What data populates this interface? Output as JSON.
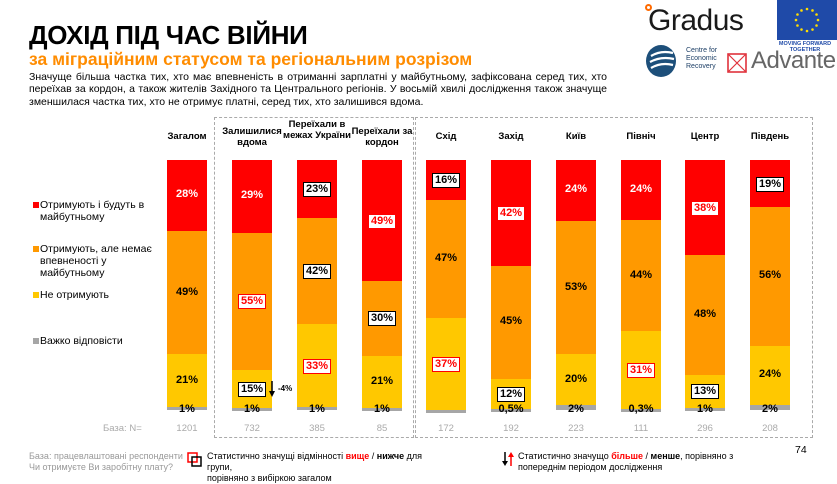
{
  "header": {
    "title": "ДОХІД ПІД ЧАС ВІЙНИ",
    "subtitle": "за міграційним статусом та регіональним розрізом",
    "description": "Значуще більша частка тих, хто має впевненість в отриманні зарплатні у майбутньому, зафіксована серед тих, хто переїхав за кордон, а також жителів Західного та Центрального регіонів. У восьмій хвилі дослідження також значуще зменшилася частка тих, хто не отримує платні, серед тих, хто залишився вдома."
  },
  "logos": {
    "gradus": "Gradus",
    "eu_caption": "MOVING FORWARD TOGETHER",
    "cer": "Centre for Economic Recovery",
    "advanter": "Advanter"
  },
  "colors": {
    "receive_future": "#ff0000",
    "receive_uncertain": "#ff9900",
    "not_receive": "#ffc800",
    "hard_to_say": "#a6a6a6",
    "subtitle": "#ff8c00",
    "highlight": "#ff0000"
  },
  "chart_data": {
    "type": "bar",
    "stacked": true,
    "orientation": "vertical",
    "title": "ДОХІД ПІД ЧАС ВІЙНИ",
    "ylim": [
      0,
      100
    ],
    "categories": [
      "Загалом",
      "Залишилися вдома",
      "Переїхали в межах України",
      "Переїхали за кордон",
      "Схід",
      "Захід",
      "Київ",
      "Північ",
      "Центр",
      "Південь"
    ],
    "series": [
      {
        "name": "Отримують і будуть в майбутньому",
        "values": [
          28,
          29,
          23,
          49,
          16,
          42,
          24,
          24,
          38,
          19
        ]
      },
      {
        "name": "Отримують, але немає впевненості у майбутньому",
        "values": [
          49,
          55,
          42,
          30,
          47,
          45,
          53,
          44,
          48,
          56
        ]
      },
      {
        "name": "Не отримують",
        "values": [
          21,
          15,
          33,
          21,
          37,
          12,
          20,
          31,
          13,
          24
        ]
      },
      {
        "name": "Важко відповісти",
        "values": [
          1,
          1,
          1,
          1,
          0,
          0.5,
          2,
          0.3,
          1,
          2
        ]
      }
    ],
    "value_labels": [
      [
        "28%",
        "49%",
        "21%",
        "1%"
      ],
      [
        "29%",
        "55%",
        "15%",
        "1%"
      ],
      [
        "23%",
        "42%",
        "33%",
        "1%"
      ],
      [
        "49%",
        "30%",
        "21%",
        "1%"
      ],
      [
        "16%",
        "47%",
        "37%",
        ""
      ],
      [
        "42%",
        "45%",
        "12%",
        "0,5%"
      ],
      [
        "24%",
        "53%",
        "20%",
        "2%"
      ],
      [
        "24%",
        "44%",
        "31%",
        "0,3%"
      ],
      [
        "38%",
        "48%",
        "13%",
        "1%"
      ],
      [
        "19%",
        "56%",
        "24%",
        "2%"
      ]
    ],
    "significance": [
      [
        "none",
        "none",
        "none",
        "none"
      ],
      [
        "none",
        "higher",
        "lower",
        "none"
      ],
      [
        "lower",
        "lower",
        "higher",
        "none"
      ],
      [
        "higher",
        "lower",
        "none",
        "none"
      ],
      [
        "lower",
        "none",
        "higher",
        "none"
      ],
      [
        "higher",
        "none",
        "lower",
        "none"
      ],
      [
        "none",
        "none",
        "none",
        "none"
      ],
      [
        "none",
        "none",
        "higher",
        "none"
      ],
      [
        "higher",
        "none",
        "lower",
        "none"
      ],
      [
        "lower",
        "none",
        "none",
        "none"
      ]
    ],
    "changes": [
      {
        "category": "Залишилися вдома",
        "series": "Не отримують",
        "direction": "down",
        "label": "-4%"
      }
    ],
    "base_label": "База: N=",
    "bases": [
      "1201",
      "732",
      "385",
      "85",
      "172",
      "192",
      "223",
      "111",
      "296",
      "208"
    ],
    "legend": [
      "Отримують і будуть в майбутньому",
      "Отримують, але немає впевненості у майбутньому",
      "Не отримують",
      "Важко відповісти"
    ],
    "legend_position": "left"
  },
  "footer": {
    "base_note": "База: працевлаштовані респонденти",
    "question": "Чи отримуєте Ви заробітну плату?",
    "sig_note_pre": "Статистично значущі відмінності ",
    "sig_note_higher": "вище",
    "sig_note_sep": " / ",
    "sig_note_lower": "нижче",
    "sig_note_post": " для групи,",
    "sig_note_line2": "порівняно з вибіркою загалом",
    "change_note_pre": "Статистично значущо ",
    "change_note_more": "більше",
    "change_note_sep": " / ",
    "change_note_less": "менше",
    "change_note_post": ", порівняно з",
    "change_note_line2": "попереднім періодом дослідження",
    "page_number": "74"
  }
}
